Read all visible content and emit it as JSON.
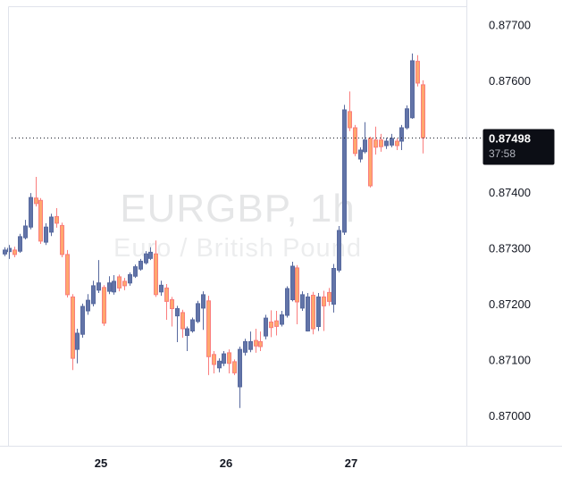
{
  "watermark": {
    "line1": "EURGBP, 1h",
    "line2": "Euro / British Pound"
  },
  "last_price": {
    "price": "0.87498",
    "countdown": "37:58",
    "value": 0.87498
  },
  "price_axis": {
    "ticks": [
      {
        "label": "0.87700",
        "value": 0.877
      },
      {
        "label": "0.87600",
        "value": 0.876
      },
      {
        "label": "0.87400",
        "value": 0.874
      },
      {
        "label": "0.87300",
        "value": 0.873
      },
      {
        "label": "0.87200",
        "value": 0.872
      },
      {
        "label": "0.87100",
        "value": 0.871
      },
      {
        "label": "0.87000",
        "value": 0.87
      }
    ]
  },
  "time_axis": {
    "labels": [
      {
        "label": "25",
        "index": 18.53
      },
      {
        "label": "26",
        "index": 42.44
      },
      {
        "label": "27",
        "index": 66.36
      }
    ]
  },
  "colors": {
    "up_fill": "#6274A8",
    "up_border": "#57699E",
    "down_fill": "#FFA76E",
    "down_border": "#FA7D7D",
    "axis_text": "#131722",
    "pane_border": "#E0E3EB",
    "badge_bg": "#0C0E15",
    "badge_text": "#FFFFFF",
    "badge_countdown": "#B2B5BE",
    "last_price_line": "#131722",
    "background": "#FFFFFF"
  },
  "chart_data": {
    "type": "candlestick",
    "symbol": "EURGBP",
    "timeframe": "1h",
    "description": "Euro / British Pound",
    "title": "EURGBP, 1h — Euro / British Pound",
    "grid": false,
    "legend_position": "none",
    "visible_price_range": [
      0.86945,
      0.87734
    ],
    "day_labels": [
      "25",
      "26",
      "27"
    ],
    "last_close": 0.87498,
    "countdown": "37:58",
    "candles_ohlc": [
      [
        0.8729,
        0.87302,
        0.87286,
        0.87297
      ],
      [
        0.87294,
        0.87306,
        0.87281,
        0.873
      ],
      [
        0.87297,
        0.87303,
        0.87284,
        0.87289
      ],
      [
        0.87295,
        0.87326,
        0.87292,
        0.87321
      ],
      [
        0.87319,
        0.87351,
        0.87316,
        0.8734
      ],
      [
        0.87338,
        0.87399,
        0.87334,
        0.87391
      ],
      [
        0.8739,
        0.87428,
        0.87375,
        0.8738
      ],
      [
        0.87386,
        0.8739,
        0.87308,
        0.87313
      ],
      [
        0.87311,
        0.87345,
        0.87306,
        0.87338
      ],
      [
        0.87329,
        0.87362,
        0.87322,
        0.87356
      ],
      [
        0.87357,
        0.87372,
        0.87337,
        0.87345
      ],
      [
        0.87341,
        0.87346,
        0.87284,
        0.87289
      ],
      [
        0.87289,
        0.87297,
        0.87212,
        0.87217
      ],
      [
        0.87213,
        0.87218,
        0.87082,
        0.87103
      ],
      [
        0.87119,
        0.87156,
        0.87094,
        0.87148
      ],
      [
        0.87146,
        0.87201,
        0.8714,
        0.87196
      ],
      [
        0.87188,
        0.87218,
        0.87181,
        0.87207
      ],
      [
        0.87201,
        0.87242,
        0.87196,
        0.87233
      ],
      [
        0.87225,
        0.87279,
        0.8722,
        0.87238
      ],
      [
        0.8723,
        0.87234,
        0.87161,
        0.87166
      ],
      [
        0.87223,
        0.8725,
        0.87218,
        0.87238
      ],
      [
        0.87222,
        0.87252,
        0.87217,
        0.87241
      ],
      [
        0.87249,
        0.87253,
        0.87223,
        0.87229
      ],
      [
        0.87241,
        0.87247,
        0.87225,
        0.87233
      ],
      [
        0.87238,
        0.87257,
        0.87233,
        0.87253
      ],
      [
        0.8725,
        0.87271,
        0.87247,
        0.87267
      ],
      [
        0.87263,
        0.87281,
        0.8726,
        0.87277
      ],
      [
        0.87274,
        0.87295,
        0.87271,
        0.8729
      ],
      [
        0.87282,
        0.87302,
        0.87279,
        0.87293
      ],
      [
        0.8729,
        0.87314,
        0.87213,
        0.87217
      ],
      [
        0.87222,
        0.87242,
        0.87215,
        0.87234
      ],
      [
        0.87229,
        0.87236,
        0.87172,
        0.87205
      ],
      [
        0.87208,
        0.87213,
        0.8716,
        0.87192
      ],
      [
        0.87179,
        0.87197,
        0.87132,
        0.87192
      ],
      [
        0.87185,
        0.8719,
        0.8714,
        0.87156
      ],
      [
        0.87144,
        0.8716,
        0.87116,
        0.87156
      ],
      [
        0.87152,
        0.87176,
        0.87149,
        0.87172
      ],
      [
        0.87169,
        0.87206,
        0.87166,
        0.87201
      ],
      [
        0.87193,
        0.87223,
        0.87154,
        0.87217
      ],
      [
        0.87206,
        0.87215,
        0.87073,
        0.87106
      ],
      [
        0.8711,
        0.87116,
        0.87076,
        0.87092
      ],
      [
        0.87086,
        0.87103,
        0.87078,
        0.87098
      ],
      [
        0.87094,
        0.87116,
        0.87089,
        0.87111
      ],
      [
        0.87113,
        0.87119,
        0.87076,
        0.87094
      ],
      [
        0.87097,
        0.87101,
        0.87073,
        0.87077
      ],
      [
        0.87052,
        0.87124,
        0.87014,
        0.87119
      ],
      [
        0.87114,
        0.87138,
        0.87108,
        0.87133
      ],
      [
        0.87119,
        0.87151,
        0.87114,
        0.87133
      ],
      [
        0.87135,
        0.87156,
        0.87113,
        0.87125
      ],
      [
        0.87133,
        0.87151,
        0.87116,
        0.87124
      ],
      [
        0.87143,
        0.87181,
        0.87137,
        0.87175
      ],
      [
        0.87168,
        0.87189,
        0.87141,
        0.87158
      ],
      [
        0.8717,
        0.87188,
        0.87144,
        0.8716
      ],
      [
        0.87164,
        0.87188,
        0.8716,
        0.87181
      ],
      [
        0.8718,
        0.87232,
        0.87176,
        0.87228
      ],
      [
        0.87208,
        0.87276,
        0.87205,
        0.87268
      ],
      [
        0.87265,
        0.8727,
        0.87164,
        0.87204
      ],
      [
        0.87193,
        0.87223,
        0.87188,
        0.87217
      ],
      [
        0.87152,
        0.8722,
        0.87151,
        0.87213
      ],
      [
        0.87216,
        0.87222,
        0.87146,
        0.87156
      ],
      [
        0.8716,
        0.8722,
        0.87152,
        0.87213
      ],
      [
        0.87213,
        0.87224,
        0.87152,
        0.87197
      ],
      [
        0.87221,
        0.87229,
        0.87197,
        0.87205
      ],
      [
        0.872,
        0.87272,
        0.87185,
        0.87264
      ],
      [
        0.87261,
        0.8734,
        0.87257,
        0.87332
      ],
      [
        0.87329,
        0.87557,
        0.87324,
        0.87548
      ],
      [
        0.87545,
        0.87581,
        0.8751,
        0.87516
      ],
      [
        0.87516,
        0.87521,
        0.87465,
        0.8747
      ],
      [
        0.8746,
        0.87481,
        0.87454,
        0.87476
      ],
      [
        0.87473,
        0.87526,
        0.8747,
        0.87494
      ],
      [
        0.87497,
        0.875,
        0.87409,
        0.87412
      ],
      [
        0.87494,
        0.87518,
        0.87468,
        0.87481
      ],
      [
        0.87494,
        0.87505,
        0.87473,
        0.87482
      ],
      [
        0.87484,
        0.87498,
        0.87478,
        0.87492
      ],
      [
        0.87485,
        0.87505,
        0.87481,
        0.87497
      ],
      [
        0.87492,
        0.87497,
        0.87476,
        0.87484
      ],
      [
        0.87492,
        0.87521,
        0.87476,
        0.87516
      ],
      [
        0.87516,
        0.87556,
        0.87513,
        0.8755
      ],
      [
        0.87534,
        0.87649,
        0.87532,
        0.87636
      ],
      [
        0.87635,
        0.87646,
        0.8759,
        0.87596
      ],
      [
        0.87593,
        0.87601,
        0.8747,
        0.87498
      ]
    ]
  }
}
